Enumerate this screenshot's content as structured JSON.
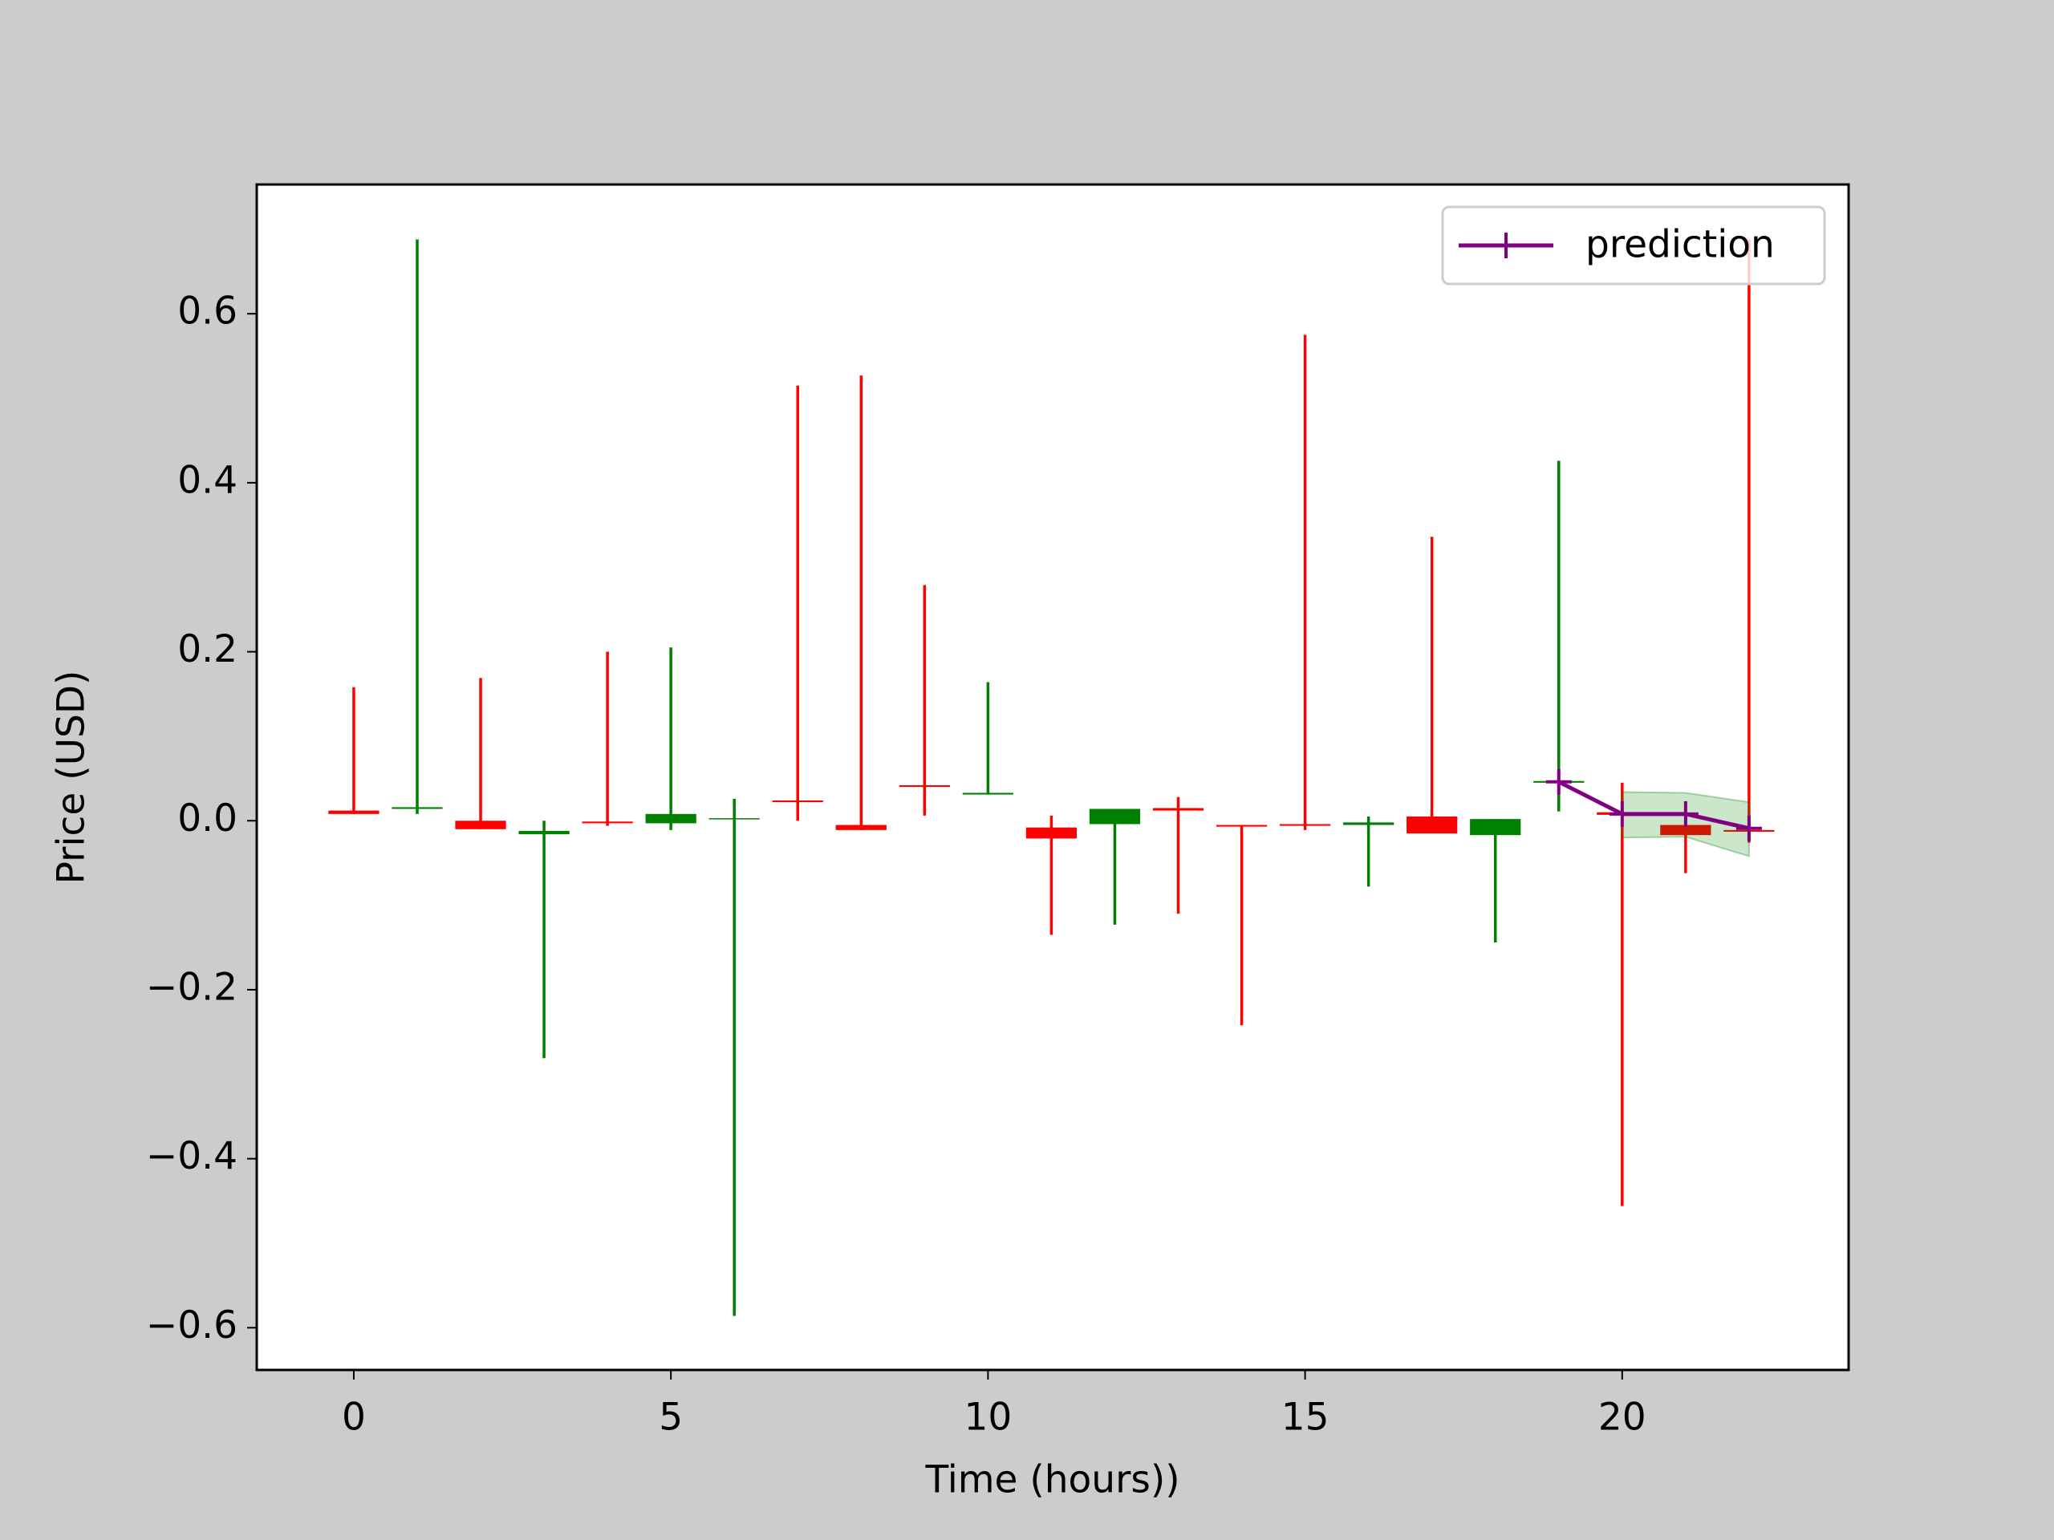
{
  "chart_data": {
    "type": "candlestick",
    "x_label": "Time (hours))",
    "y_label": "Price (USD)",
    "x": [
      0,
      1,
      2,
      3,
      4,
      5,
      6,
      7,
      8,
      9,
      10,
      11,
      12,
      13,
      14,
      15,
      16,
      17,
      18,
      19,
      20,
      21,
      22
    ],
    "open": [
      0.012,
      0.014,
      0.0,
      -0.016,
      -0.001,
      -0.003,
      0.002,
      0.024,
      -0.005,
      0.042,
      0.031,
      -0.008,
      -0.004,
      0.015,
      -0.005,
      -0.004,
      -0.005,
      0.005,
      -0.017,
      0.045,
      0.01,
      -0.005,
      -0.011
    ],
    "high": [
      0.158,
      0.688,
      0.169,
      0.0,
      0.2,
      0.205,
      0.026,
      0.515,
      0.527,
      0.279,
      0.164,
      0.006,
      0.014,
      0.028,
      -0.005,
      0.575,
      0.005,
      0.336,
      0.002,
      0.426,
      0.045,
      0.023,
      0.688
    ],
    "low": [
      0.008,
      0.008,
      -0.01,
      -0.281,
      -0.006,
      -0.011,
      -0.586,
      0.0,
      -0.011,
      0.006,
      0.031,
      -0.135,
      -0.123,
      -0.11,
      -0.242,
      -0.011,
      -0.078,
      -0.015,
      -0.144,
      0.011,
      -0.456,
      -0.062,
      -0.026
    ],
    "close": [
      0.008,
      0.016,
      -0.01,
      -0.012,
      -0.003,
      0.008,
      0.003,
      0.022,
      -0.011,
      0.04,
      0.033,
      -0.021,
      0.014,
      0.012,
      -0.007,
      -0.006,
      -0.002,
      -0.015,
      0.002,
      0.047,
      0.007,
      -0.017,
      -0.013
    ],
    "up_color": "green",
    "down_color": "red",
    "series": [
      {
        "name": "prediction",
        "color": "purple",
        "x": [
          19,
          20,
          21,
          22
        ],
        "values": [
          0.046,
          0.008,
          0.008,
          -0.009
        ],
        "band_x": [
          20,
          21,
          22
        ],
        "band_upper": [
          0.034,
          0.033,
          0.022
        ],
        "band_lower": [
          -0.02,
          -0.019,
          -0.042
        ],
        "band_color": "green"
      }
    ],
    "xlim": [
      -1.53,
      23.57
    ],
    "ylim": [
      -0.65,
      0.753
    ],
    "xticks": [
      0,
      5,
      10,
      15,
      20
    ],
    "yticks": [
      {
        "value": -0.6,
        "label": "−0.6"
      },
      {
        "value": -0.4,
        "label": "−0.4"
      },
      {
        "value": -0.2,
        "label": "−0.2"
      },
      {
        "value": 0,
        "label": "0.0"
      },
      0.2,
      0.4,
      0.6
    ],
    "legend": "upper right"
  }
}
